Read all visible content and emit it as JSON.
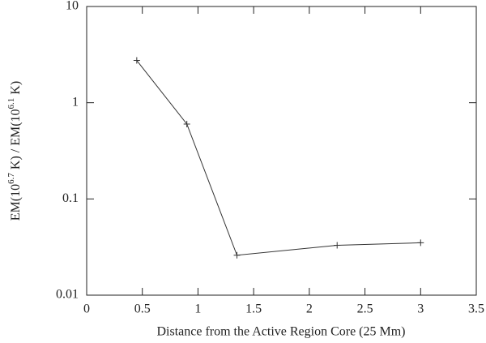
{
  "chart_data": {
    "type": "line",
    "x_label": "Distance from the Active Region Core (25 Mm)",
    "y_label": [
      "EM(10",
      "6.7",
      " K) / EM(10",
      "6.1",
      " K)"
    ],
    "x": [
      0.45,
      0.9,
      1.35,
      2.25,
      3.0
    ],
    "values": [
      2.75,
      0.6,
      0.026,
      0.033,
      0.035
    ],
    "color": "#333333",
    "xlim": [
      0,
      3.5
    ],
    "xticks": [
      0,
      0.5,
      1,
      1.5,
      2,
      2.5,
      3,
      3.5
    ],
    "ylim": [
      0.01,
      10
    ],
    "yticks": [
      0.01,
      0.1,
      1,
      10
    ],
    "log_y": true,
    "grid": false
  }
}
